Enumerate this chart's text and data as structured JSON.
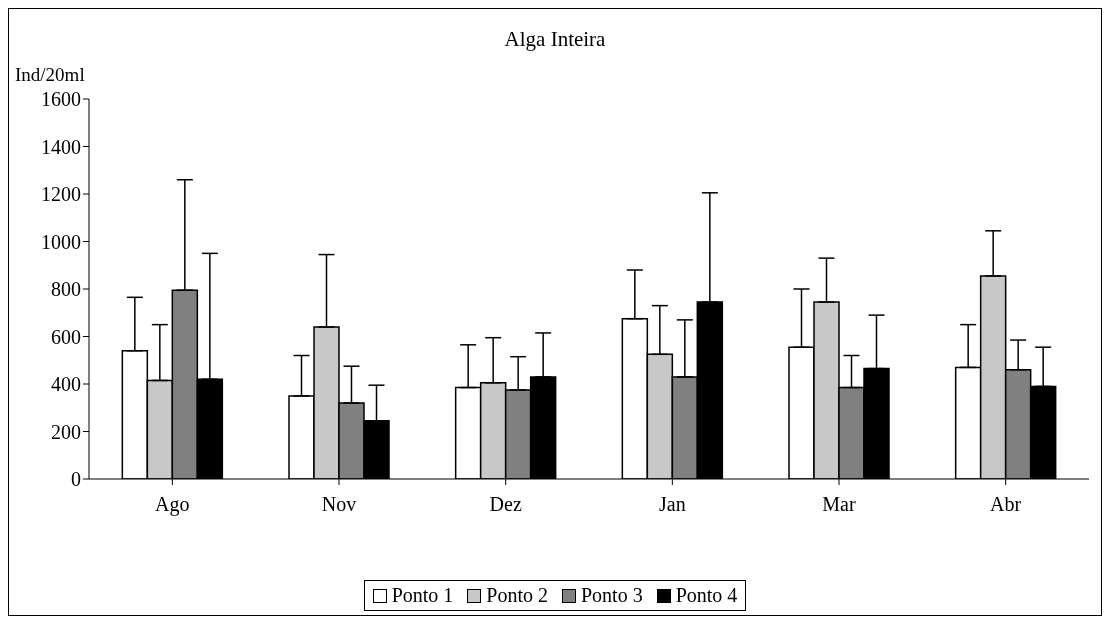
{
  "chart_data": {
    "type": "bar",
    "title": "Alga Inteira",
    "ylabel": "Ind/20ml",
    "categories": [
      "Ago",
      "Nov",
      "Dez",
      "Jan",
      "Mar",
      "Abr"
    ],
    "series": [
      {
        "name": "Ponto 1",
        "color": "#ffffff",
        "values": [
          540,
          350,
          385,
          675,
          555,
          470
        ],
        "errors": [
          [
            540,
            765
          ],
          [
            350,
            520
          ],
          [
            385,
            565
          ],
          [
            675,
            880
          ],
          [
            555,
            800
          ],
          [
            470,
            650
          ]
        ]
      },
      {
        "name": "Ponto 2",
        "color": "#c8c8c8",
        "values": [
          415,
          640,
          405,
          525,
          745,
          855
        ],
        "errors": [
          [
            415,
            650
          ],
          [
            640,
            945
          ],
          [
            405,
            595
          ],
          [
            525,
            730
          ],
          [
            745,
            930
          ],
          [
            855,
            1045
          ]
        ]
      },
      {
        "name": "Ponto 3",
        "color": "#808080",
        "values": [
          795,
          320,
          375,
          430,
          385,
          460
        ],
        "errors": [
          [
            795,
            1260
          ],
          [
            320,
            475
          ],
          [
            375,
            515
          ],
          [
            430,
            670
          ],
          [
            385,
            520
          ],
          [
            460,
            585
          ]
        ]
      },
      {
        "name": "Ponto 4",
        "color": "#000000",
        "values": [
          420,
          245,
          430,
          745,
          465,
          390
        ],
        "errors": [
          [
            420,
            950
          ],
          [
            245,
            395
          ],
          [
            430,
            615
          ],
          [
            745,
            1205
          ],
          [
            465,
            690
          ],
          [
            390,
            555
          ]
        ]
      }
    ],
    "ylim": [
      0,
      1600
    ],
    "yticks": [
      0,
      200,
      400,
      600,
      800,
      1000,
      1200,
      1400,
      1600
    ],
    "grid": false,
    "legend": "bottom"
  }
}
